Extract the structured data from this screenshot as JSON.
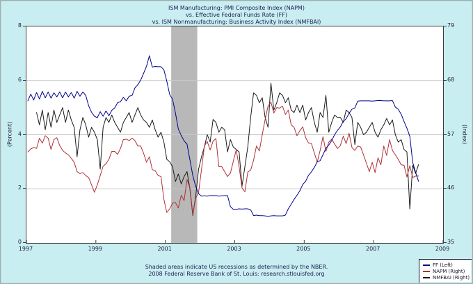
{
  "title": {
    "line1": "ISM Manufacturing: PMI Composite Index (NAPM)",
    "line2": "vs.  Effective Federal Funds Rate (FF)",
    "line3": "vs.  ISM Nonmanufacturing: Business Activity Index (NMFBAI)"
  },
  "footer": {
    "line1": "Shaded areas indicate US recessions as determined by the NBER.",
    "line2": "2008 Federal Reserve Bank of St. Louis: research.stlouisfed.org"
  },
  "legend": {
    "items": [
      {
        "label": "FF (Left)",
        "color": "#00008b"
      },
      {
        "label": "NAPM (Right)",
        "color": "#b03038"
      },
      {
        "label": "NMFBAI (Right)",
        "color": "#1a1a1a"
      }
    ]
  },
  "colors": {
    "background": "#c9eef1",
    "plot_background": "#ffffff",
    "recession_band": "#b8b8b8",
    "gridline": "#c9c9c9",
    "text": "#1c1c50"
  },
  "chart_data": {
    "type": "line",
    "title": "ISM Manufacturing: PMI Composite Index (NAPM) vs. Effective Federal Funds Rate (FF) vs. ISM Nonmanufacturing: Business Activity Index (NMFBAI)",
    "frequency": "monthly",
    "start": "1997-01",
    "end": "2008-04",
    "x_range": [
      1997,
      2009
    ],
    "x_ticks": [
      1997,
      1999,
      2001,
      2003,
      2005,
      2007,
      2009
    ],
    "grid": "horizontal",
    "legend_position": "bottom-right",
    "recession_band": {
      "start_year": 2001.17,
      "end_year": 2001.92,
      "note": "US recession (NBER)"
    },
    "left_axis": {
      "title": "(Percent)",
      "range": [
        0,
        8
      ],
      "ticks": [
        0,
        2,
        4,
        6,
        8
      ]
    },
    "right_axis": {
      "title": "(Index)",
      "range": [
        35,
        79
      ],
      "ticks": [
        35,
        46,
        57,
        68,
        79
      ]
    },
    "series": [
      {
        "name": "NMFBAI",
        "axis": "right",
        "color": "#1a1a1a",
        "values": [
          null,
          null,
          null,
          61.5,
          59.0,
          62.0,
          58.0,
          61.5,
          58.5,
          62.0,
          59.5,
          61.0,
          62.5,
          59.5,
          62.0,
          60.0,
          58.5,
          52.5,
          58.0,
          60.5,
          59.0,
          56.5,
          58.5,
          57.5,
          56.0,
          50.0,
          58.5,
          60.5,
          59.5,
          61.0,
          59.5,
          58.5,
          57.5,
          59.5,
          60.5,
          61.5,
          59.5,
          61.0,
          62.5,
          61.0,
          60.0,
          59.5,
          58.5,
          60.0,
          58.0,
          56.5,
          57.5,
          55.5,
          52.0,
          51.5,
          50.5,
          47.5,
          49.0,
          47.0,
          48.5,
          49.5,
          46.0,
          40.6,
          44.5,
          50.0,
          52.5,
          54.5,
          57.0,
          55.5,
          60.1,
          59.5,
          57.5,
          58.5,
          58.0,
          53.5,
          56.0,
          54.5,
          54.0,
          53.5,
          46.5,
          50.5,
          54.5,
          60.5,
          65.5,
          65.0,
          63.5,
          64.5,
          60.5,
          58.5,
          67.5,
          62.0,
          63.5,
          65.5,
          65.0,
          63.5,
          64.5,
          62.0,
          61.5,
          63.0,
          61.5,
          63.0,
          60.0,
          61.5,
          62.5,
          59.5,
          57.5,
          61.5,
          60.5,
          65.0,
          57.5,
          59.5,
          61.0,
          60.5,
          60.5,
          59.5,
          62.0,
          61.5,
          60.5,
          55.0,
          59.5,
          58.5,
          57.0,
          57.5,
          58.5,
          59.5,
          57.5,
          56.5,
          58.0,
          59.0,
          60.3,
          59.0,
          60.0,
          57.0,
          55.5,
          56.0,
          54.0,
          53.5,
          41.9,
          50.8,
          49.1,
          50.9
        ]
      },
      {
        "name": "NAPM",
        "axis": "right",
        "color": "#b03038",
        "values": [
          53.5,
          54.1,
          54.4,
          54.2,
          56.3,
          55.3,
          56.8,
          56.3,
          54.0,
          56.0,
          56.4,
          54.8,
          53.8,
          53.3,
          52.9,
          52.2,
          51.4,
          49.5,
          49.1,
          49.3,
          48.7,
          48.3,
          46.8,
          45.3,
          46.8,
          48.7,
          50.6,
          51.1,
          52.0,
          53.6,
          53.6,
          53.0,
          54.2,
          56.0,
          56.1,
          55.8,
          56.3,
          55.8,
          54.7,
          54.7,
          53.2,
          51.4,
          52.5,
          49.9,
          49.7,
          48.7,
          48.5,
          43.9,
          41.2,
          41.9,
          43.1,
          43.2,
          42.1,
          44.7,
          43.6,
          47.9,
          46.2,
          40.8,
          44.1,
          45.3,
          49.9,
          54.7,
          55.6,
          53.9,
          55.7,
          56.2,
          50.5,
          50.5,
          49.5,
          48.5,
          49.2,
          51.6,
          53.9,
          50.5,
          46.2,
          45.4,
          49.4,
          49.8,
          51.8,
          54.7,
          53.7,
          57.0,
          60.1,
          62.8,
          63.6,
          61.4,
          62.5,
          62.4,
          62.8,
          61.1,
          62.0,
          59.0,
          58.5,
          56.8,
          57.8,
          58.6,
          56.4,
          55.3,
          55.2,
          53.3,
          51.4,
          53.8,
          56.6,
          53.6,
          55.5,
          56.1,
          55.1,
          54.2,
          54.8,
          56.7,
          55.2,
          57.3,
          54.4,
          53.8,
          54.7,
          54.5,
          52.9,
          51.2,
          49.5,
          51.4,
          49.3,
          52.3,
          50.9,
          54.7,
          52.8,
          56.0,
          53.8,
          52.9,
          52.0,
          50.9,
          50.8,
          48.4,
          50.7,
          48.3,
          48.6,
          48.6
        ]
      },
      {
        "name": "FF",
        "axis": "left",
        "color": "#00008b",
        "values": [
          5.25,
          5.5,
          5.28,
          5.56,
          5.32,
          5.6,
          5.36,
          5.58,
          5.35,
          5.55,
          5.4,
          5.58,
          5.36,
          5.58,
          5.4,
          5.56,
          5.35,
          5.6,
          5.42,
          5.58,
          5.45,
          5.07,
          4.83,
          4.68,
          4.63,
          4.85,
          4.68,
          4.88,
          4.7,
          4.9,
          4.99,
          5.18,
          5.22,
          5.38,
          5.25,
          5.42,
          5.45,
          5.73,
          5.85,
          6.02,
          6.27,
          6.53,
          6.92,
          6.5,
          6.52,
          6.51,
          6.51,
          6.4,
          5.98,
          5.49,
          5.31,
          4.8,
          4.21,
          3.97,
          3.77,
          3.65,
          3.07,
          2.49,
          2.09,
          1.82,
          1.73,
          1.74,
          1.73,
          1.75,
          1.75,
          1.75,
          1.73,
          1.74,
          1.75,
          1.75,
          1.34,
          1.24,
          1.24,
          1.26,
          1.25,
          1.26,
          1.26,
          1.22,
          1.01,
          1.03,
          1.01,
          1.01,
          1.0,
          0.98,
          1.0,
          1.01,
          1.0,
          1.0,
          1.0,
          1.03,
          1.26,
          1.43,
          1.61,
          1.76,
          1.93,
          2.16,
          2.28,
          2.5,
          2.63,
          2.79,
          3.0,
          3.04,
          3.26,
          3.5,
          3.62,
          3.78,
          4.0,
          4.16,
          4.29,
          4.49,
          4.59,
          4.79,
          4.94,
          4.99,
          5.24,
          5.25,
          5.25,
          5.25,
          5.25,
          5.24,
          5.25,
          5.26,
          5.26,
          5.25,
          5.25,
          5.25,
          5.26,
          5.02,
          4.94,
          4.76,
          4.49,
          4.24,
          3.94,
          2.98,
          2.61,
          2.28
        ]
      }
    ]
  }
}
